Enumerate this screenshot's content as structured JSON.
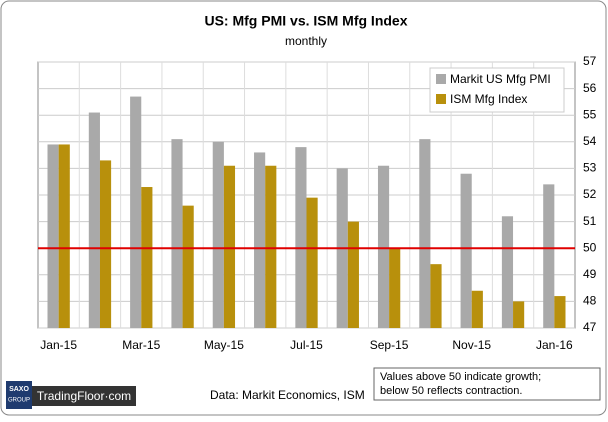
{
  "chart_data": {
    "type": "bar",
    "title": "US: Mfg PMI vs. ISM Mfg Index",
    "subtitle": "monthly",
    "categories": [
      "Jan-15",
      null,
      "Mar-15",
      null,
      "May-15",
      null,
      "Jul-15",
      null,
      "Sep-15",
      null,
      "Nov-15",
      null,
      "Jan-16"
    ],
    "series": [
      {
        "name": "Markit US Mfg PMI",
        "color": "#a9a9a9",
        "values": [
          53.9,
          55.1,
          55.7,
          54.1,
          54.0,
          53.6,
          53.8,
          53.0,
          53.1,
          54.1,
          52.8,
          51.2,
          52.4
        ]
      },
      {
        "name": "ISM Mfg Index",
        "color": "#b8900c",
        "values": [
          53.9,
          53.3,
          52.3,
          51.6,
          53.1,
          53.1,
          51.9,
          51.0,
          50.0,
          49.4,
          48.4,
          48.0,
          48.2
        ]
      }
    ],
    "ylim": [
      47,
      57
    ],
    "yticks": [
      47,
      48,
      49,
      50,
      51,
      52,
      53,
      54,
      55,
      56,
      57
    ],
    "grid": true,
    "reference_line": {
      "value": 50,
      "color": "#e00000"
    },
    "legend": "upper-right",
    "note": [
      "Values above 50 indicate growth;",
      "below 50 reflects contraction."
    ],
    "source": "Data: Markit Economics, ISM"
  },
  "branding": {
    "logo_top": "SAXO",
    "logo_bottom": "GROUP",
    "site": "TradingFloor·com"
  }
}
